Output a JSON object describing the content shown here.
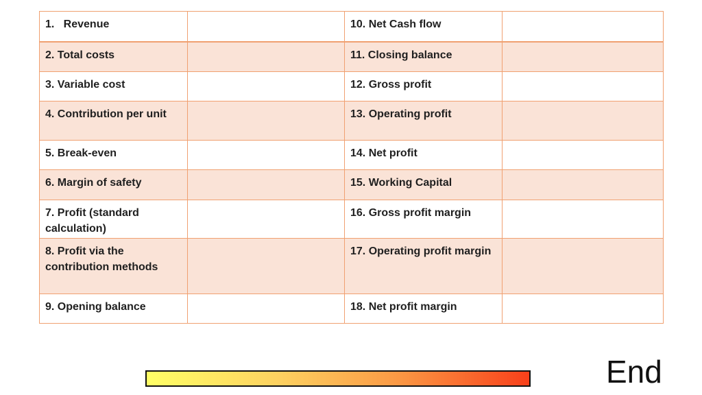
{
  "table": {
    "rows": [
      {
        "left_label": "1.   Revenue",
        "right_label": "10. Net Cash flow"
      },
      {
        "left_label": "2. Total costs",
        "right_label": "11. Closing balance"
      },
      {
        "left_label": "3. Variable cost",
        "right_label": "12. Gross profit"
      },
      {
        "left_label": "4. Contribution per unit",
        "right_label": "13. Operating profit"
      },
      {
        "left_label": "5. Break-even",
        "right_label": "14. Net profit"
      },
      {
        "left_label": "6. Margin of safety",
        "right_label": "15. Working Capital"
      },
      {
        "left_label": "7. Profit (standard calculation)",
        "right_label": "16. Gross profit margin"
      },
      {
        "left_label": "8. Profit via the contribution methods",
        "right_label": "17. Operating profit margin"
      },
      {
        "left_label": "9. Opening balance",
        "right_label": "18. Net profit margin"
      }
    ]
  },
  "footer": {
    "end_label": "End"
  },
  "colors": {
    "border": "#f0a070",
    "alt_row": "#fae3d7",
    "gradient_start": "#ffff66",
    "gradient_end": "#f8401a"
  }
}
